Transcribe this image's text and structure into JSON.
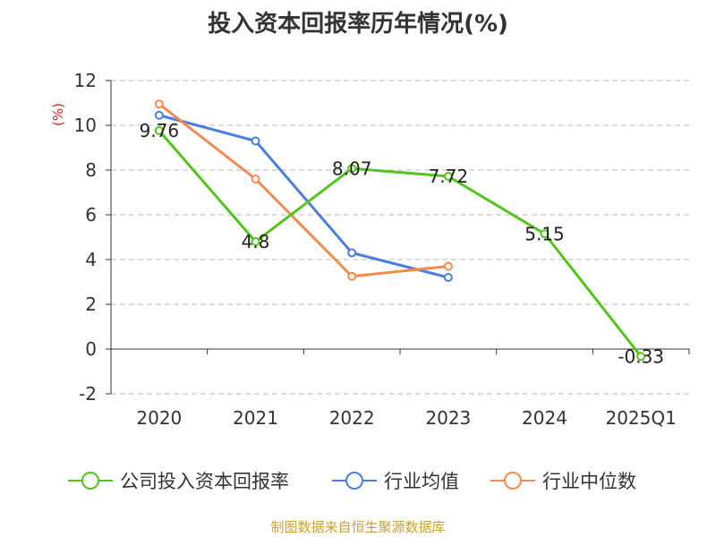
{
  "title": "投入资本回报率历年情况(%)",
  "source": "制图数据来自恒生聚源数据库",
  "chart_data": {
    "type": "line",
    "title": "投入资本回报率历年情况(%)",
    "ylabel": "(%)",
    "xlabel": "",
    "categories": [
      "2020",
      "2021",
      "2022",
      "2023",
      "2024",
      "2025Q1"
    ],
    "ylim": [
      -2,
      12
    ],
    "yticks": [
      -2,
      0,
      2,
      4,
      6,
      8,
      10,
      12
    ],
    "grid": true,
    "legend_position": "bottom",
    "series": [
      {
        "name": "公司投入资本回报率",
        "color": "#52c41a",
        "values": [
          9.76,
          4.8,
          8.07,
          7.72,
          5.15,
          -0.33
        ],
        "labels": [
          "9.76",
          "4.8",
          "8.07",
          "7.72",
          "5.15",
          "-0.33"
        ]
      },
      {
        "name": "行业均值",
        "color": "#4a7fe0",
        "values": [
          10.45,
          9.3,
          4.3,
          3.2,
          null,
          null
        ]
      },
      {
        "name": "行业中位数",
        "color": "#f5894f",
        "values": [
          10.95,
          7.6,
          3.25,
          3.7,
          null,
          null
        ]
      }
    ]
  }
}
